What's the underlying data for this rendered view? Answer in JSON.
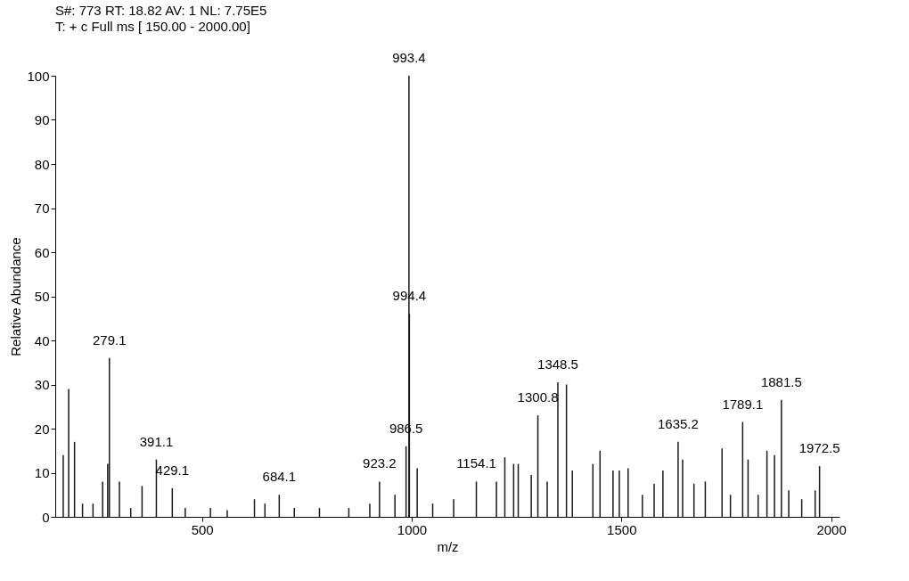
{
  "chart_data": {
    "type": "bar",
    "title": "S#: 773  RT: 18.82  AV: 1  NL: 7.75E5",
    "subtitle": "T: + c Full ms [ 150.00 - 2000.00]",
    "xlabel": "m/z",
    "ylabel": "Relative Abundance",
    "x": [
      169,
      182,
      196,
      215,
      240,
      263,
      275,
      279.1,
      303,
      330,
      357,
      391.1,
      429.1,
      460,
      520,
      560,
      625,
      650,
      684.1,
      720,
      780,
      850,
      900,
      923.2,
      960,
      986.5,
      993.4,
      994.4,
      1013,
      1050,
      1100,
      1154.1,
      1202,
      1222,
      1243,
      1254,
      1285,
      1300.8,
      1323,
      1348.5,
      1369,
      1383,
      1432,
      1449,
      1480,
      1495,
      1516,
      1550,
      1578,
      1599,
      1635.2,
      1646,
      1673,
      1700,
      1740,
      1760,
      1789.1,
      1802,
      1826,
      1847,
      1865,
      1881.5,
      1899,
      1930,
      1962,
      1972.5
    ],
    "values": [
      14,
      29,
      17,
      3,
      3,
      8,
      12,
      36,
      8,
      2,
      7,
      13,
      6.5,
      2,
      2,
      1.5,
      4,
      3,
      5,
      2,
      2,
      2,
      3,
      8,
      5,
      16,
      100,
      46,
      11,
      3,
      4,
      8,
      8,
      13.5,
      12,
      12,
      9.5,
      23,
      8,
      30.5,
      30,
      10.5,
      12,
      15,
      10.5,
      10.5,
      11,
      5,
      7.5,
      10.5,
      17,
      13,
      7.5,
      8,
      15.5,
      5,
      21.5,
      13,
      5,
      15,
      14,
      26.5,
      6,
      4,
      6,
      11.5
    ],
    "color": "#1a1a1a",
    "xlim": [
      150,
      2020
    ],
    "xticks": [
      500,
      1000,
      1500,
      2000
    ],
    "ylim": [
      0,
      100
    ],
    "yticks": [
      0,
      10,
      20,
      30,
      40,
      50,
      60,
      70,
      80,
      90,
      100
    ],
    "grid": false,
    "annotations": [
      {
        "text": "279.1",
        "x": 279.1,
        "y": 36
      },
      {
        "text": "391.1",
        "x": 391.1,
        "y": 13
      },
      {
        "text": "429.1",
        "x": 429.1,
        "y": 6.5
      },
      {
        "text": "684.1",
        "x": 684.1,
        "y": 5
      },
      {
        "text": "923.2",
        "x": 923.2,
        "y": 8
      },
      {
        "text": "986.5",
        "x": 986.5,
        "y": 16
      },
      {
        "text": "993.4",
        "x": 993.4,
        "y": 100
      },
      {
        "text": "994.4",
        "x": 994.4,
        "y": 46
      },
      {
        "text": "1154.1",
        "x": 1154.1,
        "y": 8
      },
      {
        "text": "1300.8",
        "x": 1300.8,
        "y": 23
      },
      {
        "text": "1348.5",
        "x": 1348.5,
        "y": 30.5
      },
      {
        "text": "1635.2",
        "x": 1635.2,
        "y": 17
      },
      {
        "text": "1789.1",
        "x": 1789.1,
        "y": 21.5
      },
      {
        "text": "1881.5",
        "x": 1881.5,
        "y": 26.5
      },
      {
        "text": "1972.5",
        "x": 1972.5,
        "y": 11.5
      }
    ]
  }
}
